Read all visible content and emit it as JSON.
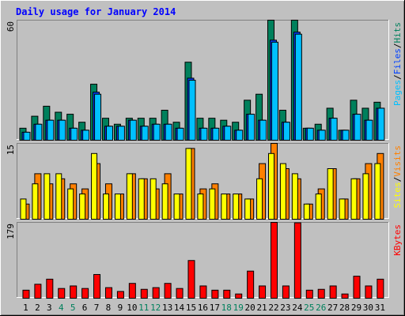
{
  "title": "Daily usage for January 2014",
  "legend_separator": "/",
  "chart_data": [
    {
      "type": "bar",
      "ylim": [
        0,
        60
      ],
      "yticks": [
        60
      ],
      "series": [
        {
          "name": "Hits",
          "color": "#00805c",
          "values": [
            6,
            12,
            17,
            14,
            13,
            9,
            28,
            11,
            8,
            11,
            11,
            11,
            15,
            9,
            39,
            11,
            11,
            10,
            9,
            20,
            23,
            60,
            15,
            60,
            6,
            8,
            16,
            5,
            20,
            16,
            19
          ]
        },
        {
          "name": "Files",
          "color": "#0040ff",
          "values": [
            4,
            8,
            10,
            10,
            6,
            5,
            24,
            7,
            7,
            10,
            7,
            8,
            8,
            6,
            31,
            6,
            6,
            7,
            5,
            13,
            10,
            50,
            9,
            54,
            6,
            5,
            11,
            5,
            13,
            10,
            16
          ]
        },
        {
          "name": "Pages",
          "color": "#00c0ff",
          "values": [
            4,
            8,
            10,
            10,
            6,
            5,
            23,
            7,
            7,
            10,
            7,
            8,
            8,
            6,
            30,
            6,
            6,
            7,
            5,
            13,
            10,
            49,
            9,
            53,
            6,
            5,
            11,
            5,
            13,
            10,
            16
          ]
        }
      ]
    },
    {
      "type": "bar",
      "ylim": [
        0,
        15
      ],
      "yticks": [
        15
      ],
      "series": [
        {
          "name": "Visits",
          "color": "#ff8000",
          "values": [
            3,
            9,
            7,
            8,
            7,
            6,
            11,
            7,
            5,
            9,
            8,
            6,
            9,
            5,
            14,
            6,
            7,
            5,
            5,
            4,
            11,
            15,
            10,
            8,
            3,
            6,
            10,
            4,
            8,
            11,
            13
          ]
        },
        {
          "name": "Sites",
          "color": "#ffff00",
          "values": [
            4,
            7,
            9,
            9,
            6,
            5,
            13,
            5,
            5,
            9,
            8,
            8,
            7,
            5,
            14,
            5,
            6,
            5,
            5,
            4,
            8,
            13,
            11,
            9,
            3,
            5,
            10,
            4,
            8,
            9,
            11
          ]
        }
      ]
    },
    {
      "type": "bar",
      "ylim": [
        0,
        179
      ],
      "yticks": [
        179
      ],
      "categories": [
        1,
        2,
        3,
        4,
        5,
        6,
        7,
        8,
        9,
        10,
        11,
        12,
        13,
        14,
        15,
        16,
        17,
        18,
        19,
        20,
        21,
        22,
        23,
        24,
        25,
        26,
        27,
        28,
        29,
        30,
        31
      ],
      "category_colors": [
        "#000000",
        "#000000",
        "#000000",
        "#00805c",
        "#00805c",
        "#000000",
        "#000000",
        "#000000",
        "#000000",
        "#000000",
        "#00805c",
        "#00805c",
        "#000000",
        "#000000",
        "#000000",
        "#000000",
        "#000000",
        "#00805c",
        "#00805c",
        "#000000",
        "#000000",
        "#000000",
        "#000000",
        "#000000",
        "#00805c",
        "#00805c",
        "#000000",
        "#000000",
        "#000000",
        "#000000",
        "#000000"
      ],
      "series": [
        {
          "name": "KBytes",
          "color": "#ff0000",
          "values": [
            19,
            33,
            45,
            23,
            29,
            23,
            56,
            25,
            16,
            35,
            21,
            25,
            35,
            23,
            89,
            29,
            19,
            19,
            10,
            64,
            29,
            179,
            29,
            178,
            19,
            21,
            29,
            10,
            52,
            29,
            45
          ]
        }
      ]
    }
  ]
}
